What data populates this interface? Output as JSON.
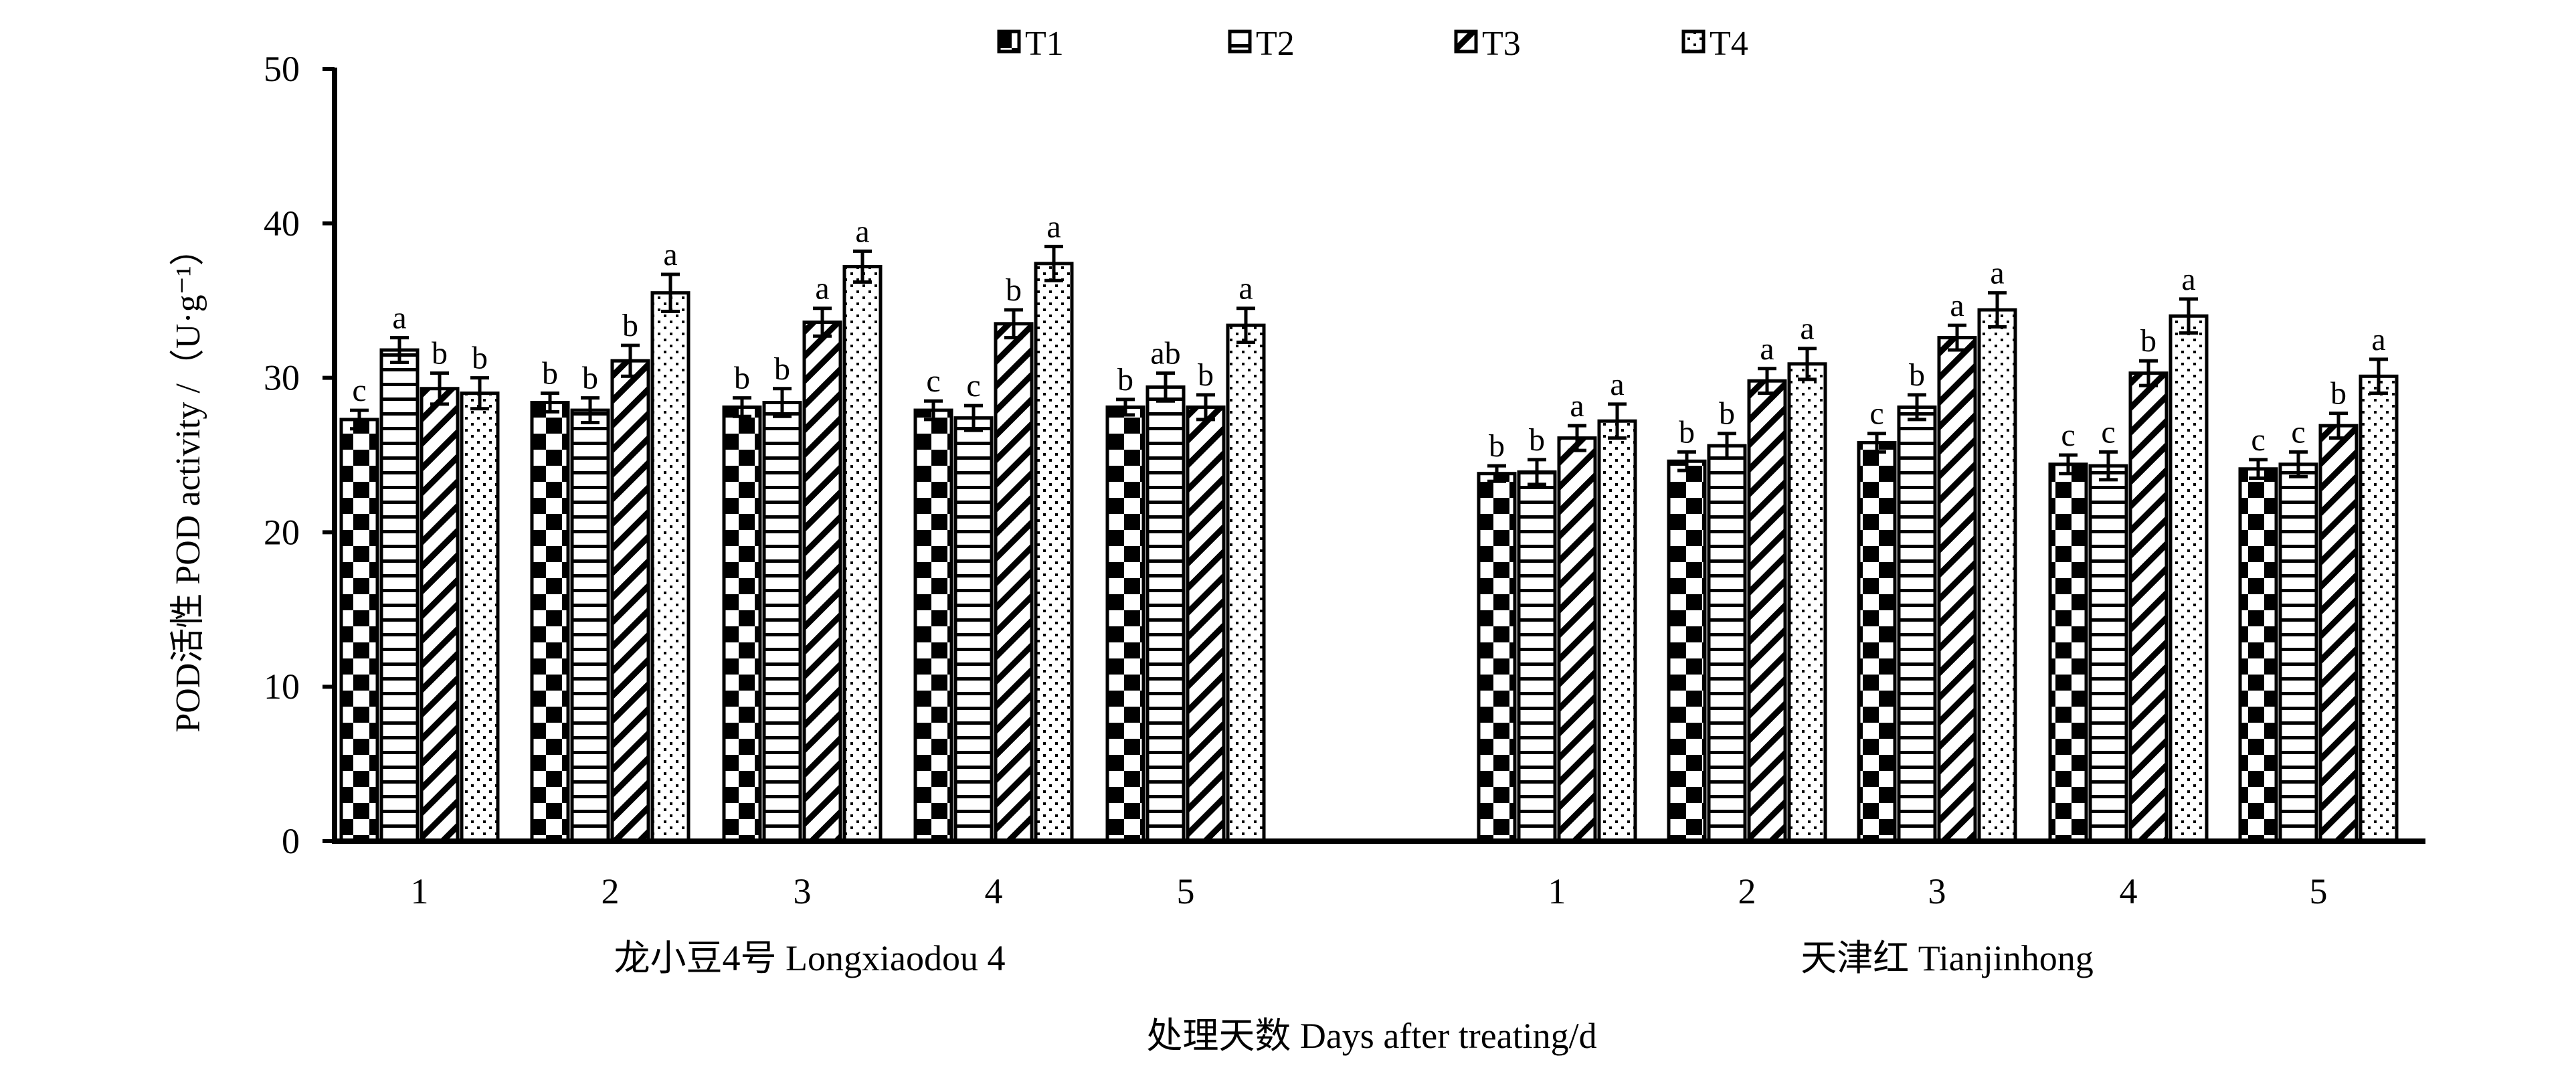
{
  "chart_data": {
    "type": "bar",
    "ylabel": "POD活性  POD activity /（U·g⁻¹）",
    "xlabel": "处理天数 Days after treating/d",
    "ylim": [
      0,
      50
    ],
    "yticks": [
      0,
      10,
      20,
      30,
      40,
      50
    ],
    "legend": {
      "placement": "top-center",
      "entries": [
        "T1",
        "T2",
        "T3",
        "T4"
      ]
    },
    "groups": [
      {
        "name": "龙小豆4号 Longxiaodou 4",
        "categories": [
          "1",
          "2",
          "3",
          "4",
          "5"
        ],
        "series": [
          {
            "name": "T1",
            "values": [
              27.3,
              28.4,
              28.1,
              27.9,
              28.1
            ],
            "errors": [
              0.6,
              0.6,
              0.6,
              0.6,
              0.5
            ]
          },
          {
            "name": "T2",
            "values": [
              31.8,
              27.9,
              28.4,
              27.4,
              29.4
            ],
            "errors": [
              0.8,
              0.8,
              0.9,
              0.8,
              0.9
            ]
          },
          {
            "name": "T3",
            "values": [
              29.3,
              31.1,
              33.6,
              33.5,
              28.1
            ],
            "errors": [
              1.0,
              1.0,
              0.9,
              0.9,
              0.8
            ]
          },
          {
            "name": "T4",
            "values": [
              29.0,
              35.5,
              37.2,
              37.4,
              33.4
            ],
            "errors": [
              1.0,
              1.2,
              1.0,
              1.1,
              1.1
            ]
          }
        ],
        "labels": [
          [
            "c",
            "a",
            "b",
            "b"
          ],
          [
            "b",
            "b",
            "b",
            "a"
          ],
          [
            "b",
            "b",
            "a",
            "a"
          ],
          [
            "c",
            "c",
            "b",
            "a"
          ],
          [
            "b",
            "ab",
            "b",
            "a"
          ]
        ]
      },
      {
        "name": "天津红 Tianjinhong",
        "categories": [
          "1",
          "2",
          "3",
          "4",
          "5"
        ],
        "series": [
          {
            "name": "T1",
            "values": [
              23.8,
              24.6,
              25.8,
              24.4,
              24.1
            ],
            "errors": [
              0.5,
              0.6,
              0.6,
              0.6,
              0.6
            ]
          },
          {
            "name": "T2",
            "values": [
              23.9,
              25.6,
              28.1,
              24.3,
              24.4
            ],
            "errors": [
              0.8,
              0.8,
              0.8,
              0.9,
              0.8
            ]
          },
          {
            "name": "T3",
            "values": [
              26.1,
              29.8,
              32.6,
              30.3,
              26.9
            ],
            "errors": [
              0.8,
              0.8,
              0.8,
              0.8,
              0.8
            ]
          },
          {
            "name": "T4",
            "values": [
              27.2,
              30.9,
              34.4,
              34.0,
              30.1
            ],
            "errors": [
              1.1,
              1.0,
              1.1,
              1.1,
              1.1
            ]
          }
        ],
        "labels": [
          [
            "b",
            "b",
            "a",
            "a"
          ],
          [
            "b",
            "b",
            "a",
            "a"
          ],
          [
            "c",
            "b",
            "a",
            "a"
          ],
          [
            "c",
            "c",
            "b",
            "a"
          ],
          [
            "c",
            "c",
            "b",
            "a"
          ]
        ]
      }
    ]
  }
}
